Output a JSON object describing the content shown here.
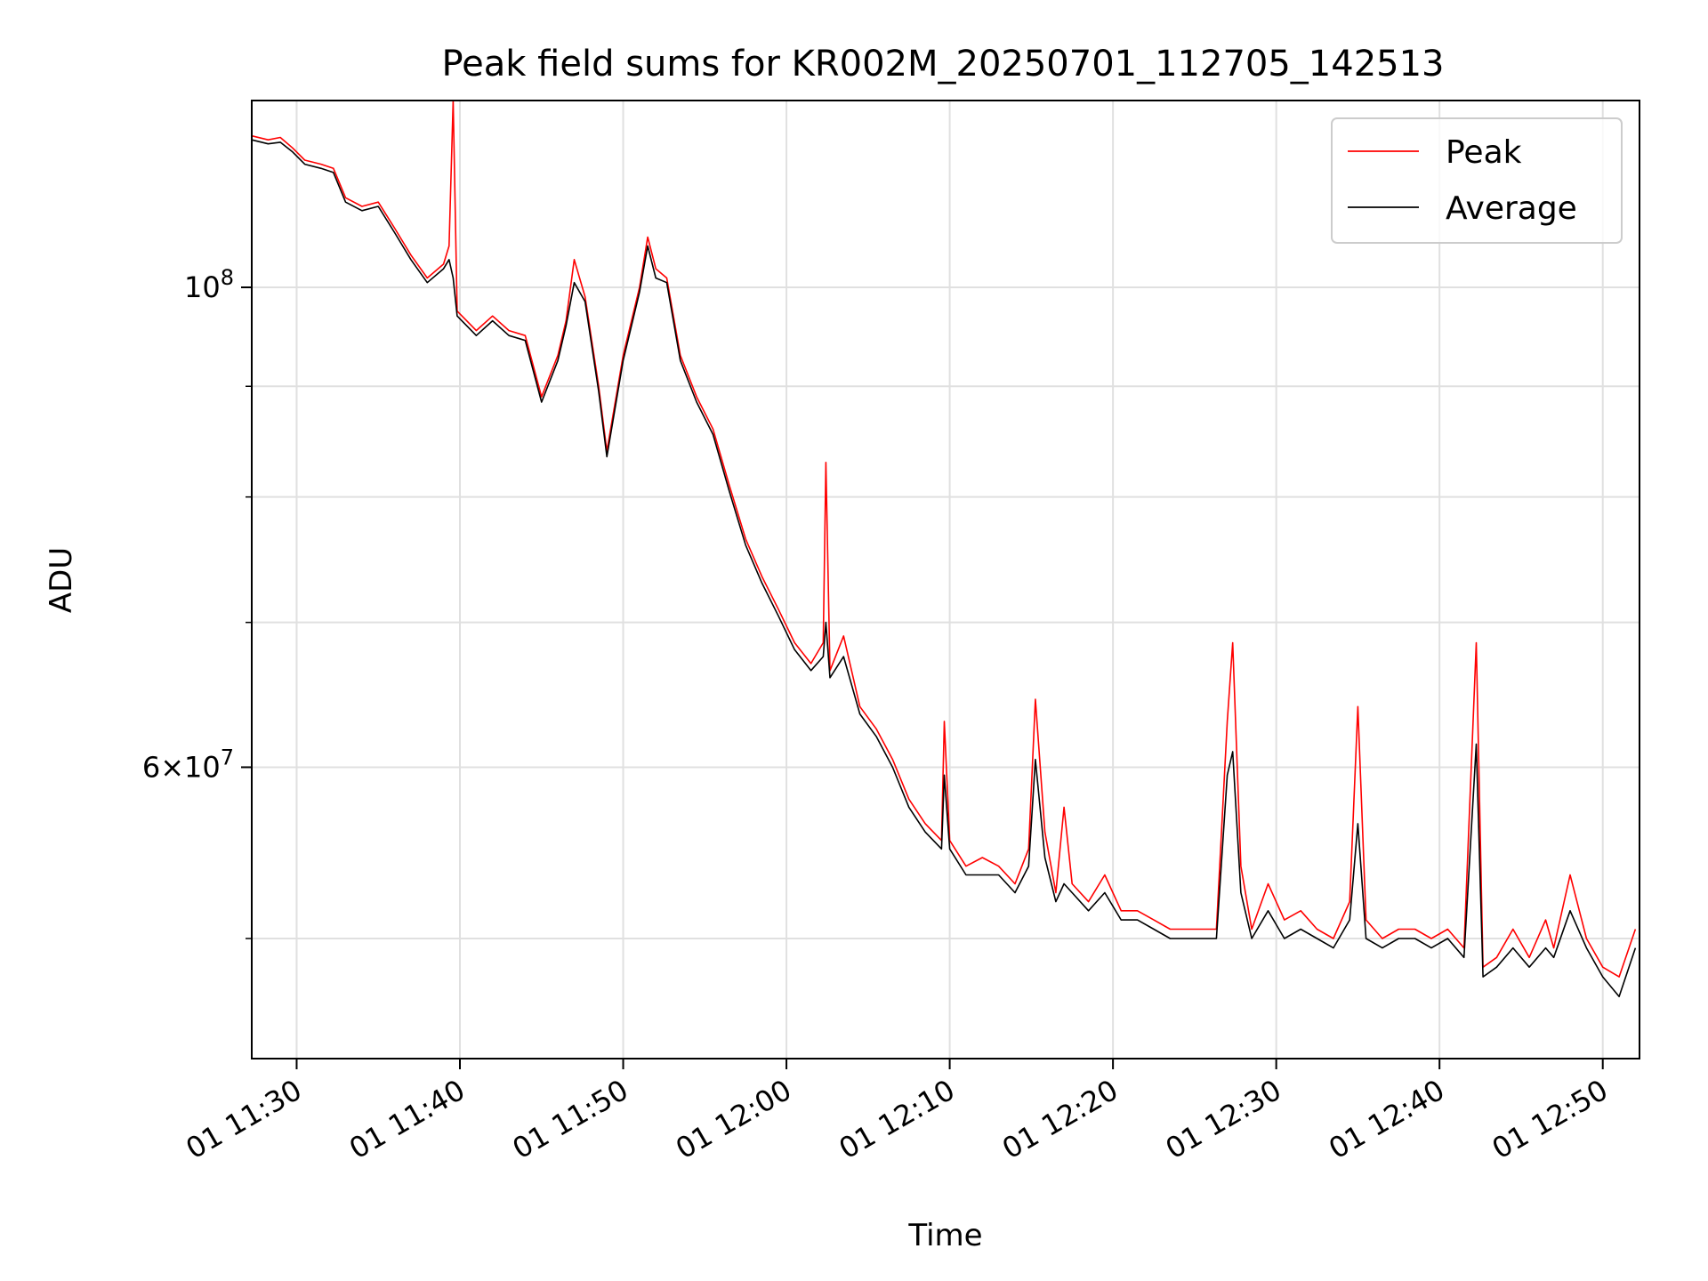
{
  "chart_data": {
    "type": "line",
    "title": "Peak field sums for KR002M_20250701_112705_142513",
    "xlabel": "Time",
    "ylabel": "ADU",
    "y_scale": "log",
    "grid": true,
    "legend_position": "top-right",
    "x_ticks": [
      {
        "value": "2025-07-01 11:30",
        "label": "01 11:30"
      },
      {
        "value": "2025-07-01 11:40",
        "label": "01 11:40"
      },
      {
        "value": "2025-07-01 11:50",
        "label": "01 11:50"
      },
      {
        "value": "2025-07-01 12:00",
        "label": "01 12:00"
      },
      {
        "value": "2025-07-01 12:10",
        "label": "01 12:10"
      },
      {
        "value": "2025-07-01 12:20",
        "label": "01 12:20"
      },
      {
        "value": "2025-07-01 12:30",
        "label": "01 12:30"
      },
      {
        "value": "2025-07-01 12:40",
        "label": "01 12:40"
      },
      {
        "value": "2025-07-01 12:50",
        "label": "01 12:50"
      }
    ],
    "y_ticks": [
      {
        "value": 100000000,
        "label": "10^8"
      },
      {
        "value": 60000000,
        "label": "6×10^7"
      }
    ],
    "xlim": [
      "2025-07-01 11:27:15",
      "2025-07-01 12:52:15"
    ],
    "ylim": [
      44000000,
      122000000
    ],
    "series": [
      {
        "name": "Peak",
        "color": "#ff0000",
        "points": [
          [
            "2025-07-01 11:27:15",
            117500000
          ],
          [
            "2025-07-01 11:28:15",
            117000000
          ],
          [
            "2025-07-01 11:29:00",
            117300000
          ],
          [
            "2025-07-01 11:29:45",
            116000000
          ],
          [
            "2025-07-01 11:30:30",
            114500000
          ],
          [
            "2025-07-01 11:31:30",
            114000000
          ],
          [
            "2025-07-01 11:32:15",
            113500000
          ],
          [
            "2025-07-01 11:33:00",
            110000000
          ],
          [
            "2025-07-01 11:34:00",
            109000000
          ],
          [
            "2025-07-01 11:35:00",
            109500000
          ],
          [
            "2025-07-01 11:36:00",
            106500000
          ],
          [
            "2025-07-01 11:37:00",
            103500000
          ],
          [
            "2025-07-01 11:38:00",
            101000000
          ],
          [
            "2025-07-01 11:39:00",
            102500000
          ],
          [
            "2025-07-01 11:39:20",
            104500000
          ],
          [
            "2025-07-01 11:39:35",
            122000000
          ],
          [
            "2025-07-01 11:39:50",
            97500000
          ],
          [
            "2025-07-01 11:41:00",
            95500000
          ],
          [
            "2025-07-01 11:42:00",
            97000000
          ],
          [
            "2025-07-01 11:43:00",
            95500000
          ],
          [
            "2025-07-01 11:44:00",
            95000000
          ],
          [
            "2025-07-01 11:45:00",
            89000000
          ],
          [
            "2025-07-01 11:46:00",
            93000000
          ],
          [
            "2025-07-01 11:46:30",
            96500000
          ],
          [
            "2025-07-01 11:47:00",
            103000000
          ],
          [
            "2025-07-01 11:47:40",
            99000000
          ],
          [
            "2025-07-01 11:48:30",
            90000000
          ],
          [
            "2025-07-01 11:49:00",
            84000000
          ],
          [
            "2025-07-01 11:50:00",
            93000000
          ],
          [
            "2025-07-01 11:51:00",
            100000000
          ],
          [
            "2025-07-01 11:51:30",
            105500000
          ],
          [
            "2025-07-01 11:52:00",
            102000000
          ],
          [
            "2025-07-01 11:52:40",
            101000000
          ],
          [
            "2025-07-01 11:53:30",
            93000000
          ],
          [
            "2025-07-01 11:54:30",
            89000000
          ],
          [
            "2025-07-01 11:55:30",
            86000000
          ],
          [
            "2025-07-01 11:56:30",
            81000000
          ],
          [
            "2025-07-01 11:57:30",
            76500000
          ],
          [
            "2025-07-01 11:58:30",
            73500000
          ],
          [
            "2025-07-01 11:59:30",
            71000000
          ],
          [
            "2025-07-01 12:00:30",
            68500000
          ],
          [
            "2025-07-01 12:01:30",
            67000000
          ],
          [
            "2025-07-01 12:02:15",
            68500000
          ],
          [
            "2025-07-01 12:02:25",
            83000000
          ],
          [
            "2025-07-01 12:02:40",
            66500000
          ],
          [
            "2025-07-01 12:03:30",
            69000000
          ],
          [
            "2025-07-01 12:04:30",
            64000000
          ],
          [
            "2025-07-01 12:05:30",
            62500000
          ],
          [
            "2025-07-01 12:06:30",
            60500000
          ],
          [
            "2025-07-01 12:07:30",
            58000000
          ],
          [
            "2025-07-01 12:08:30",
            56500000
          ],
          [
            "2025-07-01 12:09:30",
            55500000
          ],
          [
            "2025-07-01 12:09:40",
            63000000
          ],
          [
            "2025-07-01 12:10:00",
            55500000
          ],
          [
            "2025-07-01 12:11:00",
            54000000
          ],
          [
            "2025-07-01 12:12:00",
            54500000
          ],
          [
            "2025-07-01 12:13:00",
            54000000
          ],
          [
            "2025-07-01 12:14:00",
            53000000
          ],
          [
            "2025-07-01 12:14:50",
            55000000
          ],
          [
            "2025-07-01 12:15:15",
            64500000
          ],
          [
            "2025-07-01 12:15:50",
            56000000
          ],
          [
            "2025-07-01 12:16:30",
            52500000
          ],
          [
            "2025-07-01 12:17:00",
            57500000
          ],
          [
            "2025-07-01 12:17:30",
            53000000
          ],
          [
            "2025-07-01 12:18:30",
            52000000
          ],
          [
            "2025-07-01 12:19:30",
            53500000
          ],
          [
            "2025-07-01 12:20:30",
            51500000
          ],
          [
            "2025-07-01 12:21:30",
            51500000
          ],
          [
            "2025-07-01 12:22:30",
            51000000
          ],
          [
            "2025-07-01 12:23:30",
            50500000
          ],
          [
            "2025-07-01 12:24:30",
            50500000
          ],
          [
            "2025-07-01 12:25:30",
            50500000
          ],
          [
            "2025-07-01 12:26:20",
            50500000
          ],
          [
            "2025-07-01 12:27:00",
            63000000
          ],
          [
            "2025-07-01 12:27:20",
            68500000
          ],
          [
            "2025-07-01 12:27:50",
            54000000
          ],
          [
            "2025-07-01 12:28:30",
            50500000
          ],
          [
            "2025-07-01 12:29:30",
            53000000
          ],
          [
            "2025-07-01 12:30:30",
            51000000
          ],
          [
            "2025-07-01 12:31:30",
            51500000
          ],
          [
            "2025-07-01 12:32:30",
            50500000
          ],
          [
            "2025-07-01 12:33:30",
            50000000
          ],
          [
            "2025-07-01 12:34:30",
            52000000
          ],
          [
            "2025-07-01 12:35:00",
            64000000
          ],
          [
            "2025-07-01 12:35:30",
            51000000
          ],
          [
            "2025-07-01 12:36:30",
            50000000
          ],
          [
            "2025-07-01 12:37:30",
            50500000
          ],
          [
            "2025-07-01 12:38:30",
            50500000
          ],
          [
            "2025-07-01 12:39:30",
            50000000
          ],
          [
            "2025-07-01 12:40:30",
            50500000
          ],
          [
            "2025-07-01 12:41:30",
            49500000
          ],
          [
            "2025-07-01 12:42:15",
            68500000
          ],
          [
            "2025-07-01 12:42:40",
            48500000
          ],
          [
            "2025-07-01 12:43:30",
            49000000
          ],
          [
            "2025-07-01 12:44:30",
            50500000
          ],
          [
            "2025-07-01 12:45:30",
            49000000
          ],
          [
            "2025-07-01 12:46:30",
            51000000
          ],
          [
            "2025-07-01 12:47:00",
            49500000
          ],
          [
            "2025-07-01 12:48:00",
            53500000
          ],
          [
            "2025-07-01 12:49:00",
            50000000
          ],
          [
            "2025-07-01 12:50:00",
            48500000
          ],
          [
            "2025-07-01 12:51:00",
            48000000
          ],
          [
            "2025-07-01 12:52:00",
            50500000
          ]
        ]
      },
      {
        "name": "Average",
        "color": "#000000",
        "points": [
          [
            "2025-07-01 11:27:15",
            117000000
          ],
          [
            "2025-07-01 11:28:15",
            116500000
          ],
          [
            "2025-07-01 11:29:00",
            116700000
          ],
          [
            "2025-07-01 11:29:45",
            115500000
          ],
          [
            "2025-07-01 11:30:30",
            114000000
          ],
          [
            "2025-07-01 11:31:30",
            113500000
          ],
          [
            "2025-07-01 11:32:15",
            113000000
          ],
          [
            "2025-07-01 11:33:00",
            109500000
          ],
          [
            "2025-07-01 11:34:00",
            108500000
          ],
          [
            "2025-07-01 11:35:00",
            109000000
          ],
          [
            "2025-07-01 11:36:00",
            106000000
          ],
          [
            "2025-07-01 11:37:00",
            103000000
          ],
          [
            "2025-07-01 11:38:00",
            100500000
          ],
          [
            "2025-07-01 11:39:00",
            102000000
          ],
          [
            "2025-07-01 11:39:20",
            103000000
          ],
          [
            "2025-07-01 11:39:35",
            101000000
          ],
          [
            "2025-07-01 11:39:50",
            97000000
          ],
          [
            "2025-07-01 11:41:00",
            95000000
          ],
          [
            "2025-07-01 11:42:00",
            96500000
          ],
          [
            "2025-07-01 11:43:00",
            95000000
          ],
          [
            "2025-07-01 11:44:00",
            94500000
          ],
          [
            "2025-07-01 11:45:00",
            88500000
          ],
          [
            "2025-07-01 11:46:00",
            92500000
          ],
          [
            "2025-07-01 11:46:30",
            96000000
          ],
          [
            "2025-07-01 11:47:00",
            100500000
          ],
          [
            "2025-07-01 11:47:40",
            98500000
          ],
          [
            "2025-07-01 11:48:30",
            89500000
          ],
          [
            "2025-07-01 11:49:00",
            83500000
          ],
          [
            "2025-07-01 11:50:00",
            92500000
          ],
          [
            "2025-07-01 11:51:00",
            99500000
          ],
          [
            "2025-07-01 11:51:30",
            104500000
          ],
          [
            "2025-07-01 11:52:00",
            101000000
          ],
          [
            "2025-07-01 11:52:40",
            100500000
          ],
          [
            "2025-07-01 11:53:30",
            92500000
          ],
          [
            "2025-07-01 11:54:30",
            88500000
          ],
          [
            "2025-07-01 11:55:30",
            85500000
          ],
          [
            "2025-07-01 11:56:30",
            80500000
          ],
          [
            "2025-07-01 11:57:30",
            76000000
          ],
          [
            "2025-07-01 11:58:30",
            73000000
          ],
          [
            "2025-07-01 11:59:30",
            70500000
          ],
          [
            "2025-07-01 12:00:30",
            68000000
          ],
          [
            "2025-07-01 12:01:30",
            66500000
          ],
          [
            "2025-07-01 12:02:15",
            67500000
          ],
          [
            "2025-07-01 12:02:25",
            70000000
          ],
          [
            "2025-07-01 12:02:40",
            66000000
          ],
          [
            "2025-07-01 12:03:30",
            67500000
          ],
          [
            "2025-07-01 12:04:30",
            63500000
          ],
          [
            "2025-07-01 12:05:30",
            62000000
          ],
          [
            "2025-07-01 12:06:30",
            60000000
          ],
          [
            "2025-07-01 12:07:30",
            57500000
          ],
          [
            "2025-07-01 12:08:30",
            56000000
          ],
          [
            "2025-07-01 12:09:30",
            55000000
          ],
          [
            "2025-07-01 12:09:40",
            59500000
          ],
          [
            "2025-07-01 12:10:00",
            55000000
          ],
          [
            "2025-07-01 12:11:00",
            53500000
          ],
          [
            "2025-07-01 12:12:00",
            53500000
          ],
          [
            "2025-07-01 12:13:00",
            53500000
          ],
          [
            "2025-07-01 12:14:00",
            52500000
          ],
          [
            "2025-07-01 12:14:50",
            54000000
          ],
          [
            "2025-07-01 12:15:15",
            60500000
          ],
          [
            "2025-07-01 12:15:50",
            54500000
          ],
          [
            "2025-07-01 12:16:30",
            52000000
          ],
          [
            "2025-07-01 12:17:00",
            53000000
          ],
          [
            "2025-07-01 12:17:30",
            52500000
          ],
          [
            "2025-07-01 12:18:30",
            51500000
          ],
          [
            "2025-07-01 12:19:30",
            52500000
          ],
          [
            "2025-07-01 12:20:30",
            51000000
          ],
          [
            "2025-07-01 12:21:30",
            51000000
          ],
          [
            "2025-07-01 12:22:30",
            50500000
          ],
          [
            "2025-07-01 12:23:30",
            50000000
          ],
          [
            "2025-07-01 12:24:30",
            50000000
          ],
          [
            "2025-07-01 12:25:30",
            50000000
          ],
          [
            "2025-07-01 12:26:20",
            50000000
          ],
          [
            "2025-07-01 12:27:00",
            59500000
          ],
          [
            "2025-07-01 12:27:20",
            61000000
          ],
          [
            "2025-07-01 12:27:50",
            52500000
          ],
          [
            "2025-07-01 12:28:30",
            50000000
          ],
          [
            "2025-07-01 12:29:30",
            51500000
          ],
          [
            "2025-07-01 12:30:30",
            50000000
          ],
          [
            "2025-07-01 12:31:30",
            50500000
          ],
          [
            "2025-07-01 12:32:30",
            50000000
          ],
          [
            "2025-07-01 12:33:30",
            49500000
          ],
          [
            "2025-07-01 12:34:30",
            51000000
          ],
          [
            "2025-07-01 12:35:00",
            56500000
          ],
          [
            "2025-07-01 12:35:30",
            50000000
          ],
          [
            "2025-07-01 12:36:30",
            49500000
          ],
          [
            "2025-07-01 12:37:30",
            50000000
          ],
          [
            "2025-07-01 12:38:30",
            50000000
          ],
          [
            "2025-07-01 12:39:30",
            49500000
          ],
          [
            "2025-07-01 12:40:30",
            50000000
          ],
          [
            "2025-07-01 12:41:30",
            49000000
          ],
          [
            "2025-07-01 12:42:15",
            61500000
          ],
          [
            "2025-07-01 12:42:40",
            48000000
          ],
          [
            "2025-07-01 12:43:30",
            48500000
          ],
          [
            "2025-07-01 12:44:30",
            49500000
          ],
          [
            "2025-07-01 12:45:30",
            48500000
          ],
          [
            "2025-07-01 12:46:30",
            49500000
          ],
          [
            "2025-07-01 12:47:00",
            49000000
          ],
          [
            "2025-07-01 12:48:00",
            51500000
          ],
          [
            "2025-07-01 12:49:00",
            49500000
          ],
          [
            "2025-07-01 12:50:00",
            48000000
          ],
          [
            "2025-07-01 12:51:00",
            47000000
          ],
          [
            "2025-07-01 12:52:00",
            49500000
          ]
        ]
      }
    ]
  }
}
